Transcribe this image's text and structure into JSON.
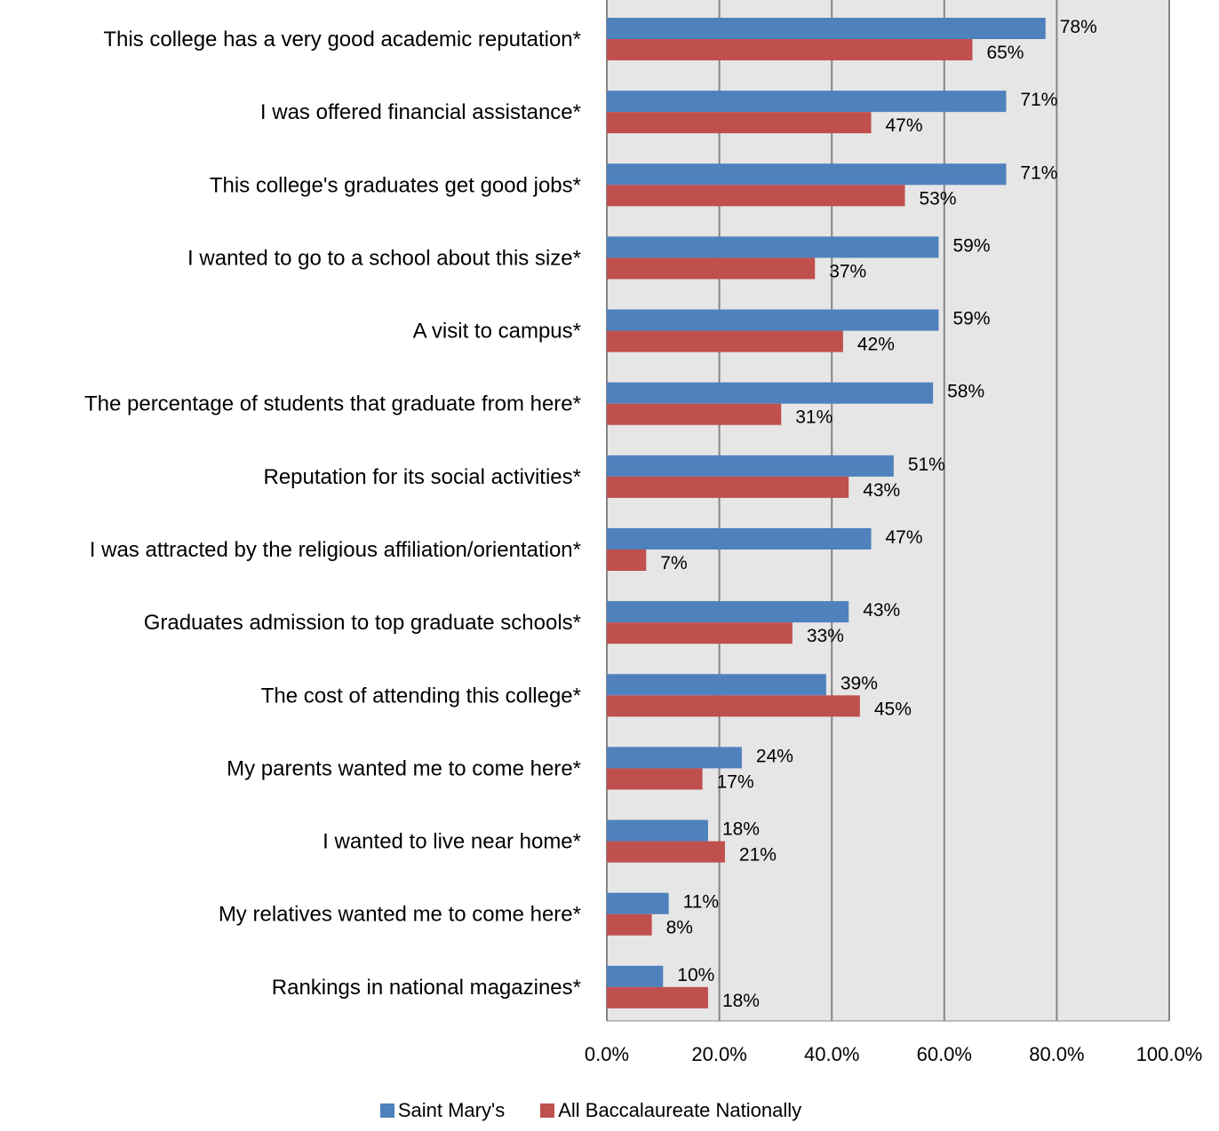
{
  "chart_data": {
    "type": "bar",
    "orientation": "horizontal",
    "categories": [
      "This college has a very good academic reputation*",
      "I was offered financial assistance*",
      "This college's graduates get good jobs*",
      "I wanted to go to a school about this size*",
      "A visit to campus*",
      "The percentage of students that graduate from here*",
      "Reputation for its social activities*",
      "I was attracted by the religious affiliation/orientation*",
      "Graduates admission to top graduate schools*",
      "The cost of attending this college*",
      "My parents wanted me to come here*",
      "I wanted to live near home*",
      "My relatives wanted me to come here*",
      "Rankings in national magazines*"
    ],
    "series": [
      {
        "name": "Saint Mary's",
        "color": "#4F81BD",
        "values": [
          78,
          71,
          71,
          59,
          59,
          58,
          51,
          47,
          43,
          39,
          24,
          18,
          11,
          10
        ],
        "labels": [
          "78%",
          "71%",
          "71%",
          "59%",
          "59%",
          "58%",
          "51%",
          "47%",
          "43%",
          "39%",
          "24%",
          "18%",
          "11%",
          "10%"
        ]
      },
      {
        "name": "All Baccalaureate Nationally",
        "color": "#C0504D",
        "values": [
          65,
          47,
          53,
          37,
          42,
          31,
          43,
          7,
          33,
          45,
          17,
          21,
          8,
          18
        ],
        "labels": [
          "65%",
          "47%",
          "53%",
          "37%",
          "42%",
          "31%",
          "43%",
          "7%",
          "33%",
          "45%",
          "17%",
          "21%",
          "8%",
          "18%"
        ]
      }
    ],
    "xlim": [
      0,
      100
    ],
    "xticks": [
      0,
      20,
      40,
      60,
      80,
      100
    ],
    "xtick_labels": [
      "0.0%",
      "20.0%",
      "40.0%",
      "60.0%",
      "80.0%",
      "100.0%"
    ],
    "grid": true,
    "plot_background": "#E6E6E6",
    "legend_position": "bottom"
  }
}
